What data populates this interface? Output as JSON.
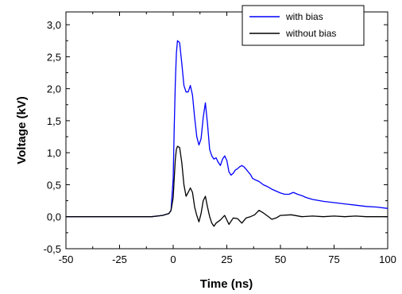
{
  "chart_data": {
    "type": "line",
    "title": "",
    "xlabel": "Time (ns)",
    "ylabel": "Voltage (kV)",
    "xlim": [
      -50,
      100
    ],
    "ylim": [
      -0.5,
      3.2
    ],
    "xticks": [
      -50,
      -25,
      0,
      25,
      50,
      75,
      100
    ],
    "xtick_labels": [
      "-50",
      "-25",
      "0",
      "25",
      "50",
      "75",
      "100"
    ],
    "yticks": [
      -0.5,
      0.0,
      0.5,
      1.0,
      1.5,
      2.0,
      2.5,
      3.0
    ],
    "ytick_labels": [
      "-0,5",
      "0,0",
      "0,5",
      "1,0",
      "1,5",
      "2,0",
      "2,5",
      "3,0"
    ],
    "grid": false,
    "legend_position": "top-right",
    "series": [
      {
        "name": "with bias",
        "color": "#0000ff",
        "x": [
          -50,
          -40,
          -30,
          -20,
          -10,
          -5,
          -2,
          -1,
          0,
          0.5,
          1,
          1.5,
          2,
          3,
          4,
          5,
          6,
          7,
          8,
          9,
          10,
          11,
          12,
          13,
          14,
          15,
          16,
          17,
          18,
          19,
          20,
          21,
          22,
          23,
          24,
          25,
          26,
          27,
          28,
          29,
          30,
          31,
          32,
          33,
          34,
          35,
          36,
          37,
          38,
          40,
          42,
          44,
          46,
          48,
          50,
          52,
          54,
          56,
          58,
          60,
          62,
          65,
          70,
          75,
          80,
          85,
          90,
          95,
          100
        ],
        "y": [
          0.0,
          0.0,
          0.0,
          0.0,
          0.0,
          0.02,
          0.05,
          0.1,
          0.6,
          1.4,
          2.1,
          2.55,
          2.75,
          2.72,
          2.4,
          2.05,
          1.95,
          1.95,
          2.05,
          1.9,
          1.55,
          1.25,
          1.12,
          1.22,
          1.55,
          1.78,
          1.45,
          1.05,
          0.95,
          0.9,
          0.92,
          0.85,
          0.8,
          0.9,
          0.95,
          0.88,
          0.7,
          0.65,
          0.68,
          0.73,
          0.75,
          0.78,
          0.8,
          0.78,
          0.74,
          0.7,
          0.66,
          0.6,
          0.58,
          0.55,
          0.5,
          0.47,
          0.43,
          0.4,
          0.37,
          0.35,
          0.35,
          0.38,
          0.35,
          0.33,
          0.3,
          0.27,
          0.24,
          0.22,
          0.2,
          0.18,
          0.16,
          0.15,
          0.13
        ]
      },
      {
        "name": "without bias",
        "color": "#000000",
        "x": [
          -50,
          -40,
          -30,
          -20,
          -10,
          -5,
          -2,
          -1,
          0,
          0.5,
          1,
          1.5,
          2,
          3,
          4,
          5,
          6,
          7,
          8,
          9,
          10,
          11,
          12,
          13,
          14,
          15,
          16,
          17,
          18,
          19,
          20,
          22,
          24,
          26,
          28,
          30,
          32,
          34,
          36,
          38,
          40,
          42,
          44,
          46,
          48,
          50,
          55,
          60,
          65,
          70,
          75,
          80,
          85,
          90,
          95,
          100
        ],
        "y": [
          0.0,
          0.0,
          0.0,
          0.0,
          0.0,
          0.02,
          0.05,
          0.1,
          0.3,
          0.6,
          0.9,
          1.05,
          1.1,
          1.08,
          0.85,
          0.5,
          0.32,
          0.38,
          0.45,
          0.38,
          0.15,
          0.02,
          -0.08,
          0.05,
          0.25,
          0.32,
          0.15,
          0.0,
          -0.1,
          -0.15,
          -0.1,
          -0.05,
          0.02,
          -0.12,
          -0.02,
          -0.03,
          -0.1,
          -0.02,
          0.0,
          0.03,
          0.1,
          0.06,
          0.01,
          -0.04,
          -0.02,
          0.02,
          0.03,
          0.0,
          0.01,
          0.0,
          0.01,
          0.0,
          0.01,
          0.0,
          0.0,
          0.0
        ]
      }
    ]
  }
}
